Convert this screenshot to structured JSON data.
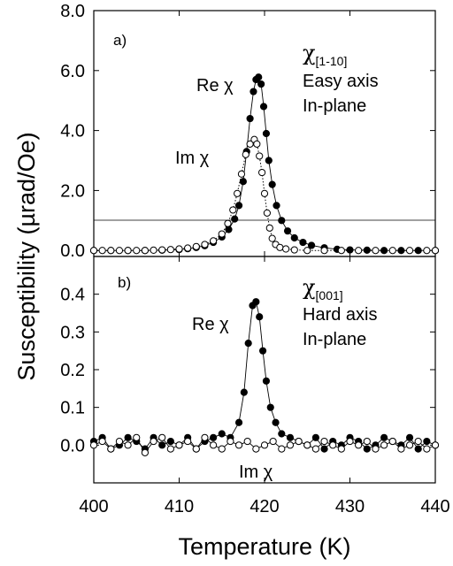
{
  "chart_data": {
    "type": "scatter",
    "shared_x": {
      "label": "Temperature (K)",
      "lim": [
        400,
        440
      ],
      "ticks": [
        400,
        410,
        420,
        430,
        440
      ],
      "tick_labels": [
        "400",
        "410",
        "420",
        "430",
        "440"
      ]
    },
    "ylabel": "Susceptibility (µrad/Oe)",
    "panels": [
      {
        "tag": "a)",
        "chi_symbol": "χ",
        "direction": "[1-10]",
        "axis_desc": "Easy axis",
        "plane_desc": "In-plane",
        "ylim": [
          -0.2,
          8.0
        ],
        "yticks": [
          0.0,
          2.0,
          4.0,
          6.0,
          8.0
        ],
        "ytick_labels": [
          "0.0",
          "2.0",
          "4.0",
          "6.0",
          "8.0"
        ],
        "baseline": 0.0,
        "series": [
          {
            "name": "Re χ",
            "marker": "filled",
            "connect": "solid",
            "points": [
              [
                400,
                0
              ],
              [
                402,
                0
              ],
              [
                404,
                0
              ],
              [
                406,
                0
              ],
              [
                408,
                0.01
              ],
              [
                410,
                0.03
              ],
              [
                411,
                0.06
              ],
              [
                412,
                0.1
              ],
              [
                413,
                0.16
              ],
              [
                414,
                0.27
              ],
              [
                415,
                0.45
              ],
              [
                415.8,
                0.7
              ],
              [
                416.5,
                1.05
              ],
              [
                417,
                1.5
              ],
              [
                417.5,
                2.3
              ],
              [
                417.9,
                3.3
              ],
              [
                418.3,
                4.4
              ],
              [
                418.7,
                5.3
              ],
              [
                419.0,
                5.7
              ],
              [
                419.3,
                5.78
              ],
              [
                419.6,
                5.55
              ],
              [
                419.9,
                4.8
              ],
              [
                420.2,
                3.9
              ],
              [
                420.5,
                3.0
              ],
              [
                420.9,
                2.2
              ],
              [
                421.4,
                1.5
              ],
              [
                422,
                1.0
              ],
              [
                422.7,
                0.65
              ],
              [
                423.5,
                0.42
              ],
              [
                424.5,
                0.27
              ],
              [
                425.5,
                0.17
              ],
              [
                427,
                0.09
              ],
              [
                428.5,
                0.04
              ],
              [
                430,
                0.02
              ],
              [
                432,
                0.01
              ],
              [
                434,
                0
              ],
              [
                436,
                0
              ],
              [
                438,
                0
              ],
              [
                440,
                0
              ]
            ]
          },
          {
            "name": "Im χ",
            "marker": "open",
            "connect": "dotted",
            "points": [
              [
                400,
                0
              ],
              [
                401,
                0
              ],
              [
                402,
                0
              ],
              [
                403,
                0
              ],
              [
                404,
                0
              ],
              [
                405,
                0
              ],
              [
                406,
                0
              ],
              [
                407,
                0.01
              ],
              [
                408,
                0.02
              ],
              [
                409,
                0.03
              ],
              [
                410,
                0.05
              ],
              [
                411,
                0.08
              ],
              [
                412,
                0.13
              ],
              [
                413,
                0.2
              ],
              [
                414,
                0.32
              ],
              [
                415,
                0.55
              ],
              [
                415.7,
                0.9
              ],
              [
                416.3,
                1.35
              ],
              [
                416.8,
                1.9
              ],
              [
                417.3,
                2.55
              ],
              [
                417.8,
                3.2
              ],
              [
                418.3,
                3.55
              ],
              [
                418.8,
                3.7
              ],
              [
                419.1,
                3.55
              ],
              [
                419.4,
                3.15
              ],
              [
                419.7,
                2.6
              ],
              [
                420.0,
                1.9
              ],
              [
                420.3,
                1.25
              ],
              [
                420.6,
                0.75
              ],
              [
                420.9,
                0.4
              ],
              [
                421.3,
                0.2
              ],
              [
                421.8,
                0.1
              ],
              [
                422.5,
                0.05
              ],
              [
                423.5,
                0.02
              ],
              [
                425,
                0
              ],
              [
                427,
                0
              ],
              [
                429,
                0
              ],
              [
                431,
                0
              ],
              [
                433,
                0
              ],
              [
                435,
                0
              ],
              [
                437,
                0
              ],
              [
                439,
                0
              ],
              [
                440,
                0
              ]
            ]
          }
        ],
        "annotations": [
          "Re χ",
          "Im χ"
        ]
      },
      {
        "tag": "b)",
        "chi_symbol": "χ",
        "direction": "[001]",
        "axis_desc": "Hard axis",
        "plane_desc": "In-plane",
        "ylim": [
          -0.1,
          0.5
        ],
        "yticks": [
          0.0,
          0.1,
          0.2,
          0.3,
          0.4
        ],
        "ytick_labels": [
          "0.0",
          "0.1",
          "0.2",
          "0.3",
          "0.4"
        ],
        "baseline": 0.0,
        "series": [
          {
            "name": "Re χ",
            "marker": "filled",
            "connect": "solid",
            "points": [
              [
                400,
                0.01
              ],
              [
                401,
                0.02
              ],
              [
                402,
                -0.01
              ],
              [
                403,
                0.0
              ],
              [
                404,
                0.02
              ],
              [
                405,
                0.01
              ],
              [
                406,
                -0.01
              ],
              [
                407,
                0.02
              ],
              [
                408,
                0.0
              ],
              [
                409,
                0.01
              ],
              [
                410,
                0.0
              ],
              [
                411,
                0.02
              ],
              [
                412,
                -0.01
              ],
              [
                413,
                0.01
              ],
              [
                414,
                0.02
              ],
              [
                415,
                0.03
              ],
              [
                416,
                0.02
              ],
              [
                417,
                0.06
              ],
              [
                417.6,
                0.14
              ],
              [
                418.1,
                0.27
              ],
              [
                418.6,
                0.37
              ],
              [
                419,
                0.38
              ],
              [
                419.4,
                0.34
              ],
              [
                419.8,
                0.25
              ],
              [
                420.2,
                0.17
              ],
              [
                420.7,
                0.1
              ],
              [
                421.3,
                0.06
              ],
              [
                422,
                0.03
              ],
              [
                423,
                0.02
              ],
              [
                424,
                0.01
              ],
              [
                425,
                0.0
              ],
              [
                426,
                0.02
              ],
              [
                427,
                -0.01
              ],
              [
                428,
                0.01
              ],
              [
                429,
                0.0
              ],
              [
                430,
                0.02
              ],
              [
                431,
                0.01
              ],
              [
                432,
                -0.01
              ],
              [
                433,
                0.0
              ],
              [
                434,
                0.02
              ],
              [
                435,
                0.01
              ],
              [
                436,
                0.0
              ],
              [
                437,
                0.02
              ],
              [
                438,
                -0.01
              ],
              [
                439,
                0.01
              ],
              [
                440,
                0.0
              ]
            ]
          },
          {
            "name": "Im χ",
            "marker": "open",
            "connect": "solid",
            "points": [
              [
                400,
                0.0
              ],
              [
                401,
                0.01
              ],
              [
                402,
                -0.01
              ],
              [
                403,
                0.01
              ],
              [
                404,
                0.0
              ],
              [
                405,
                0.02
              ],
              [
                406,
                -0.02
              ],
              [
                407,
                0.01
              ],
              [
                408,
                0.02
              ],
              [
                409,
                -0.01
              ],
              [
                410,
                0.0
              ],
              [
                411,
                0.01
              ],
              [
                412,
                -0.01
              ],
              [
                413,
                0.02
              ],
              [
                414,
                0.0
              ],
              [
                415,
                -0.01
              ],
              [
                416,
                0.01
              ],
              [
                417,
                0.0
              ],
              [
                418,
                0.01
              ],
              [
                419,
                -0.01
              ],
              [
                420,
                0.0
              ],
              [
                421,
                0.01
              ],
              [
                422,
                -0.01
              ],
              [
                423,
                0.0
              ],
              [
                424,
                0.01
              ],
              [
                425,
                0.0
              ],
              [
                426,
                -0.01
              ],
              [
                427,
                0.01
              ],
              [
                428,
                0.0
              ],
              [
                429,
                -0.01
              ],
              [
                430,
                0.01
              ],
              [
                431,
                0.0
              ],
              [
                432,
                0.01
              ],
              [
                433,
                -0.01
              ],
              [
                434,
                0.0
              ],
              [
                435,
                0.01
              ],
              [
                436,
                -0.01
              ],
              [
                437,
                0.0
              ],
              [
                438,
                0.01
              ],
              [
                439,
                -0.01
              ],
              [
                440,
                0.0
              ]
            ]
          }
        ],
        "annotations": [
          "Re χ",
          "Im χ"
        ]
      }
    ]
  }
}
